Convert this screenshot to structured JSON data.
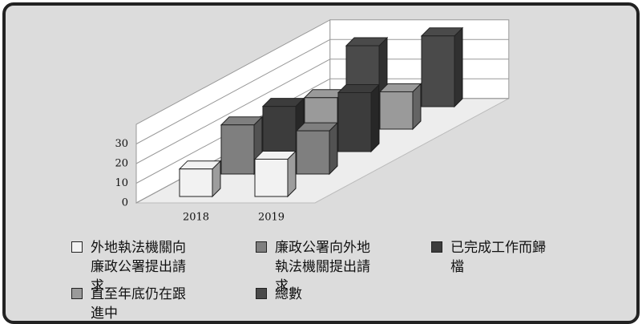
{
  "chart_data": {
    "type": "bar3d",
    "categories": [
      "2018",
      "2019"
    ],
    "series": [
      {
        "name": "外地執法機關向廉政公署提出請求",
        "color": "#f2f2f2",
        "values": [
          14,
          19
        ]
      },
      {
        "name": "廉政公署向外地執法機關提出請求",
        "color": "#7f7f7f",
        "values": [
          25,
          22
        ]
      },
      {
        "name": "已完成工作而歸檔",
        "color": "#3c3c3c",
        "values": [
          23,
          30
        ]
      },
      {
        "name": "直至年底仍在跟進中",
        "color": "#9a9a9a",
        "values": [
          16,
          19
        ]
      },
      {
        "name": "總數",
        "color": "#4a4a4a",
        "values": [
          31,
          36
        ]
      }
    ],
    "ylim": [
      0,
      40
    ],
    "yticks": [
      0,
      10,
      20,
      30
    ],
    "grid": true
  }
}
